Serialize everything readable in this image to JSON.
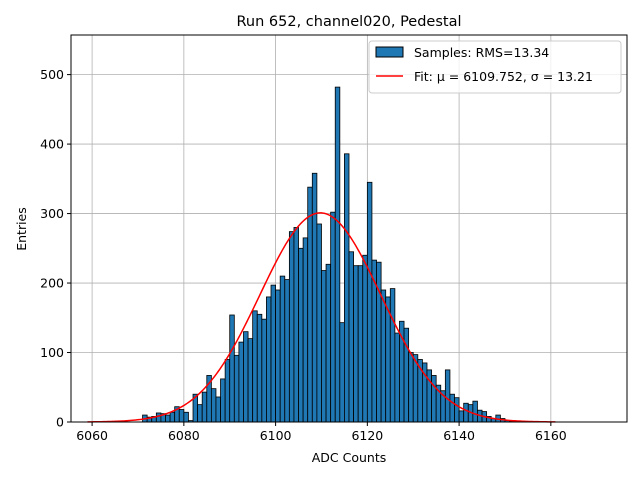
{
  "chart_data": {
    "type": "bar",
    "title": "Run 652, channel020, Pedestal",
    "xlabel": "ADC Counts",
    "ylabel": "Entries",
    "xlim": [
      6055.4,
      6176.6
    ],
    "ylim": [
      0,
      557
    ],
    "xticks": [
      6060,
      6080,
      6100,
      6120,
      6140,
      6160
    ],
    "yticks": [
      0,
      100,
      200,
      300,
      400,
      500
    ],
    "grid": true,
    "legend_position": "top-right",
    "bin_width": 1,
    "bins": [
      [
        6071,
        10
      ],
      [
        6072,
        7
      ],
      [
        6073,
        8
      ],
      [
        6074,
        13
      ],
      [
        6075,
        12
      ],
      [
        6076,
        10
      ],
      [
        6077,
        14
      ],
      [
        6078,
        22
      ],
      [
        6079,
        18
      ],
      [
        6080,
        14
      ],
      [
        6081,
        2
      ],
      [
        6082,
        40
      ],
      [
        6083,
        25
      ],
      [
        6084,
        43
      ],
      [
        6085,
        67
      ],
      [
        6086,
        48
      ],
      [
        6087,
        36
      ],
      [
        6088,
        62
      ],
      [
        6089,
        90
      ],
      [
        6090,
        154
      ],
      [
        6091,
        96
      ],
      [
        6092,
        115
      ],
      [
        6093,
        130
      ],
      [
        6094,
        120
      ],
      [
        6095,
        160
      ],
      [
        6096,
        155
      ],
      [
        6097,
        148
      ],
      [
        6098,
        180
      ],
      [
        6099,
        197
      ],
      [
        6100,
        190
      ],
      [
        6101,
        210
      ],
      [
        6102,
        205
      ],
      [
        6103,
        274
      ],
      [
        6104,
        280
      ],
      [
        6105,
        250
      ],
      [
        6106,
        265
      ],
      [
        6107,
        338
      ],
      [
        6108,
        358
      ],
      [
        6109,
        285
      ],
      [
        6110,
        218
      ],
      [
        6111,
        227
      ],
      [
        6112,
        302
      ],
      [
        6113,
        482
      ],
      [
        6114,
        143
      ],
      [
        6115,
        386
      ],
      [
        6116,
        245
      ],
      [
        6117,
        225
      ],
      [
        6118,
        225
      ],
      [
        6119,
        240
      ],
      [
        6120,
        345
      ],
      [
        6121,
        233
      ],
      [
        6122,
        230
      ],
      [
        6123,
        190
      ],
      [
        6124,
        180
      ],
      [
        6125,
        192
      ],
      [
        6126,
        128
      ],
      [
        6127,
        145
      ],
      [
        6128,
        135
      ],
      [
        6129,
        100
      ],
      [
        6130,
        97
      ],
      [
        6131,
        90
      ],
      [
        6132,
        85
      ],
      [
        6133,
        75
      ],
      [
        6134,
        67
      ],
      [
        6135,
        53
      ],
      [
        6136,
        45
      ],
      [
        6137,
        75
      ],
      [
        6138,
        40
      ],
      [
        6139,
        35
      ],
      [
        6140,
        16
      ],
      [
        6141,
        27
      ],
      [
        6142,
        25
      ],
      [
        6143,
        30
      ],
      [
        6144,
        17
      ],
      [
        6145,
        15
      ],
      [
        6146,
        8
      ],
      [
        6147,
        5
      ],
      [
        6148,
        10
      ],
      [
        6149,
        5
      ],
      [
        6150,
        2
      ],
      [
        6151,
        1
      ]
    ],
    "fit": {
      "mu": 6109.752,
      "sigma": 13.21,
      "amplitude": 301,
      "x_range": [
        6059,
        6161
      ]
    },
    "series": [
      {
        "name": "Samples: RMS=13.34",
        "type": "histogram",
        "color": "#1f77b4",
        "edge_color": "#000000"
      },
      {
        "name": "Fit: μ = 6109.752, σ = 13.21",
        "type": "line",
        "color": "#ff0000"
      }
    ]
  }
}
